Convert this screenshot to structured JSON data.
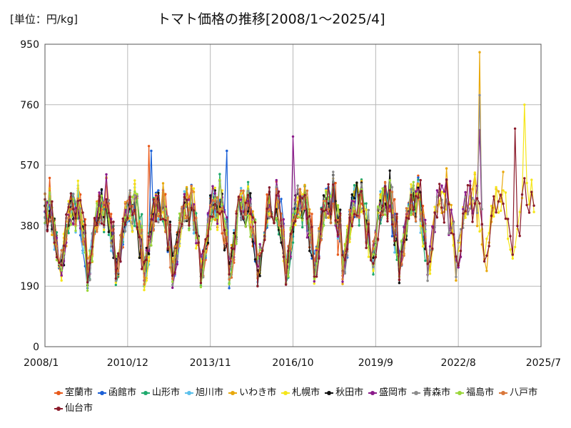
{
  "chart_data": {
    "type": "line",
    "title": "トマト価格の推移[2008/1～2025/4]",
    "unit_label": "[単位：円/kg]",
    "xlabel": "",
    "ylabel": "",
    "ylim": [
      0,
      950
    ],
    "yticks": [
      0,
      190,
      380,
      570,
      760,
      950
    ],
    "xlim": [
      "2008/1",
      "2025/7"
    ],
    "xtick_labels": [
      "2008/1",
      "2010/12",
      "2013/11",
      "2016/10",
      "2019/9",
      "2022/8",
      "2025/7"
    ],
    "grid": true,
    "legend_position": "bottom",
    "series": [
      {
        "name": "室蘭市",
        "color": "#e8591a",
        "start": "2008/1",
        "end": "2021/6",
        "seed": 1,
        "values_note": "monthly, seasonal ~190-630, peak 630 in 2011/9"
      },
      {
        "name": "函館市",
        "color": "#1a5fd6",
        "start": "2008/1",
        "end": "2021/6",
        "seed": 2,
        "values_note": "monthly, seasonal ~160-620"
      },
      {
        "name": "山形市",
        "color": "#1faa6e",
        "start": "2008/1",
        "end": "2021/6",
        "seed": 3,
        "values_note": "monthly, seasonal ~180-550"
      },
      {
        "name": "旭川市",
        "color": "#5bc0eb",
        "start": "2008/1",
        "end": "2021/6",
        "seed": 4,
        "values_note": "monthly, seasonal ~180-560"
      },
      {
        "name": "いわき市",
        "color": "#e8a80c",
        "start": "2008/1",
        "end": "2024/3",
        "seed": 5,
        "values_note": "monthly, peak 925 in 2023/5"
      },
      {
        "name": "札幌市",
        "color": "#f5e61a",
        "start": "2008/1",
        "end": "2025/4",
        "seed": 6,
        "values_note": "monthly, peak 760 in 2024/12"
      },
      {
        "name": "秋田市",
        "color": "#111111",
        "start": "2008/1",
        "end": "2021/6",
        "seed": 7,
        "values_note": "monthly, seasonal ~190-540"
      },
      {
        "name": "盛岡市",
        "color": "#8a1a8a",
        "start": "2008/1",
        "end": "2023/6",
        "seed": 8,
        "values_note": "monthly, spike 660 in 2016/10"
      },
      {
        "name": "青森市",
        "color": "#8c8c8c",
        "start": "2008/1",
        "end": "2023/6",
        "seed": 9,
        "values_note": "monthly, peak 790 in 2023/5"
      },
      {
        "name": "福島市",
        "color": "#9ad63a",
        "start": "2008/1",
        "end": "2021/6",
        "seed": 10,
        "values_note": "monthly, seasonal ~190-550"
      },
      {
        "name": "八戸市",
        "color": "#d9773a",
        "start": "2008/1",
        "end": "2021/6",
        "seed": 11,
        "values_note": "monthly, seasonal ~160-560"
      },
      {
        "name": "仙台市",
        "color": "#8b1a2a",
        "start": "2008/1",
        "end": "2025/4",
        "seed": 12,
        "values_note": "monthly, peak 685 in 2024/8"
      }
    ]
  }
}
